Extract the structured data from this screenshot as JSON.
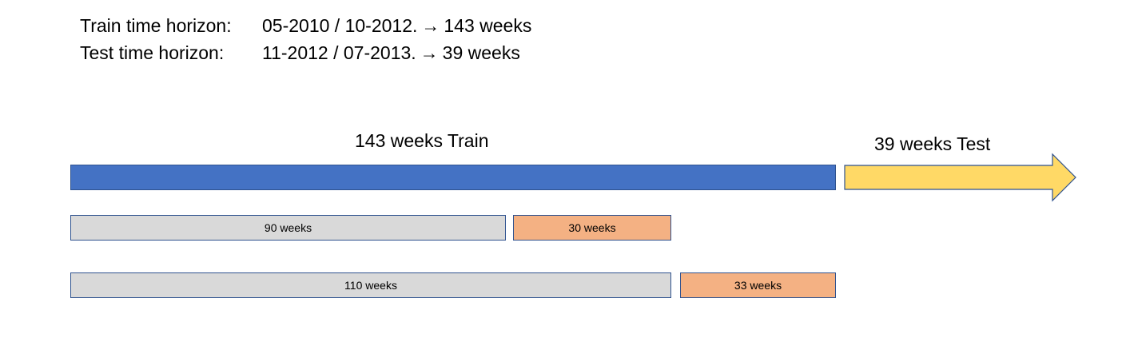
{
  "header": {
    "train": {
      "label": "Train time horizon:",
      "range": "05-2010 / 10-2012.",
      "arrow": "→",
      "result": "143 weeks"
    },
    "test": {
      "label": "Test time horizon:",
      "range": "11-2012 / 07-2013.",
      "arrow": "→",
      "result": "39 weeks"
    }
  },
  "timeline": {
    "train_label": "143 weeks Train",
    "test_label": "39 weeks Test"
  },
  "splits": [
    {
      "train": "90 weeks",
      "validation": "30 weeks"
    },
    {
      "train": "110 weeks",
      "validation": "33 weeks"
    }
  ],
  "colors": {
    "train_bar": "#4472c4",
    "test_arrow": "#ffd966",
    "split_train": "#d9d9d9",
    "split_validation": "#f4b183",
    "border": "#2f528f"
  }
}
